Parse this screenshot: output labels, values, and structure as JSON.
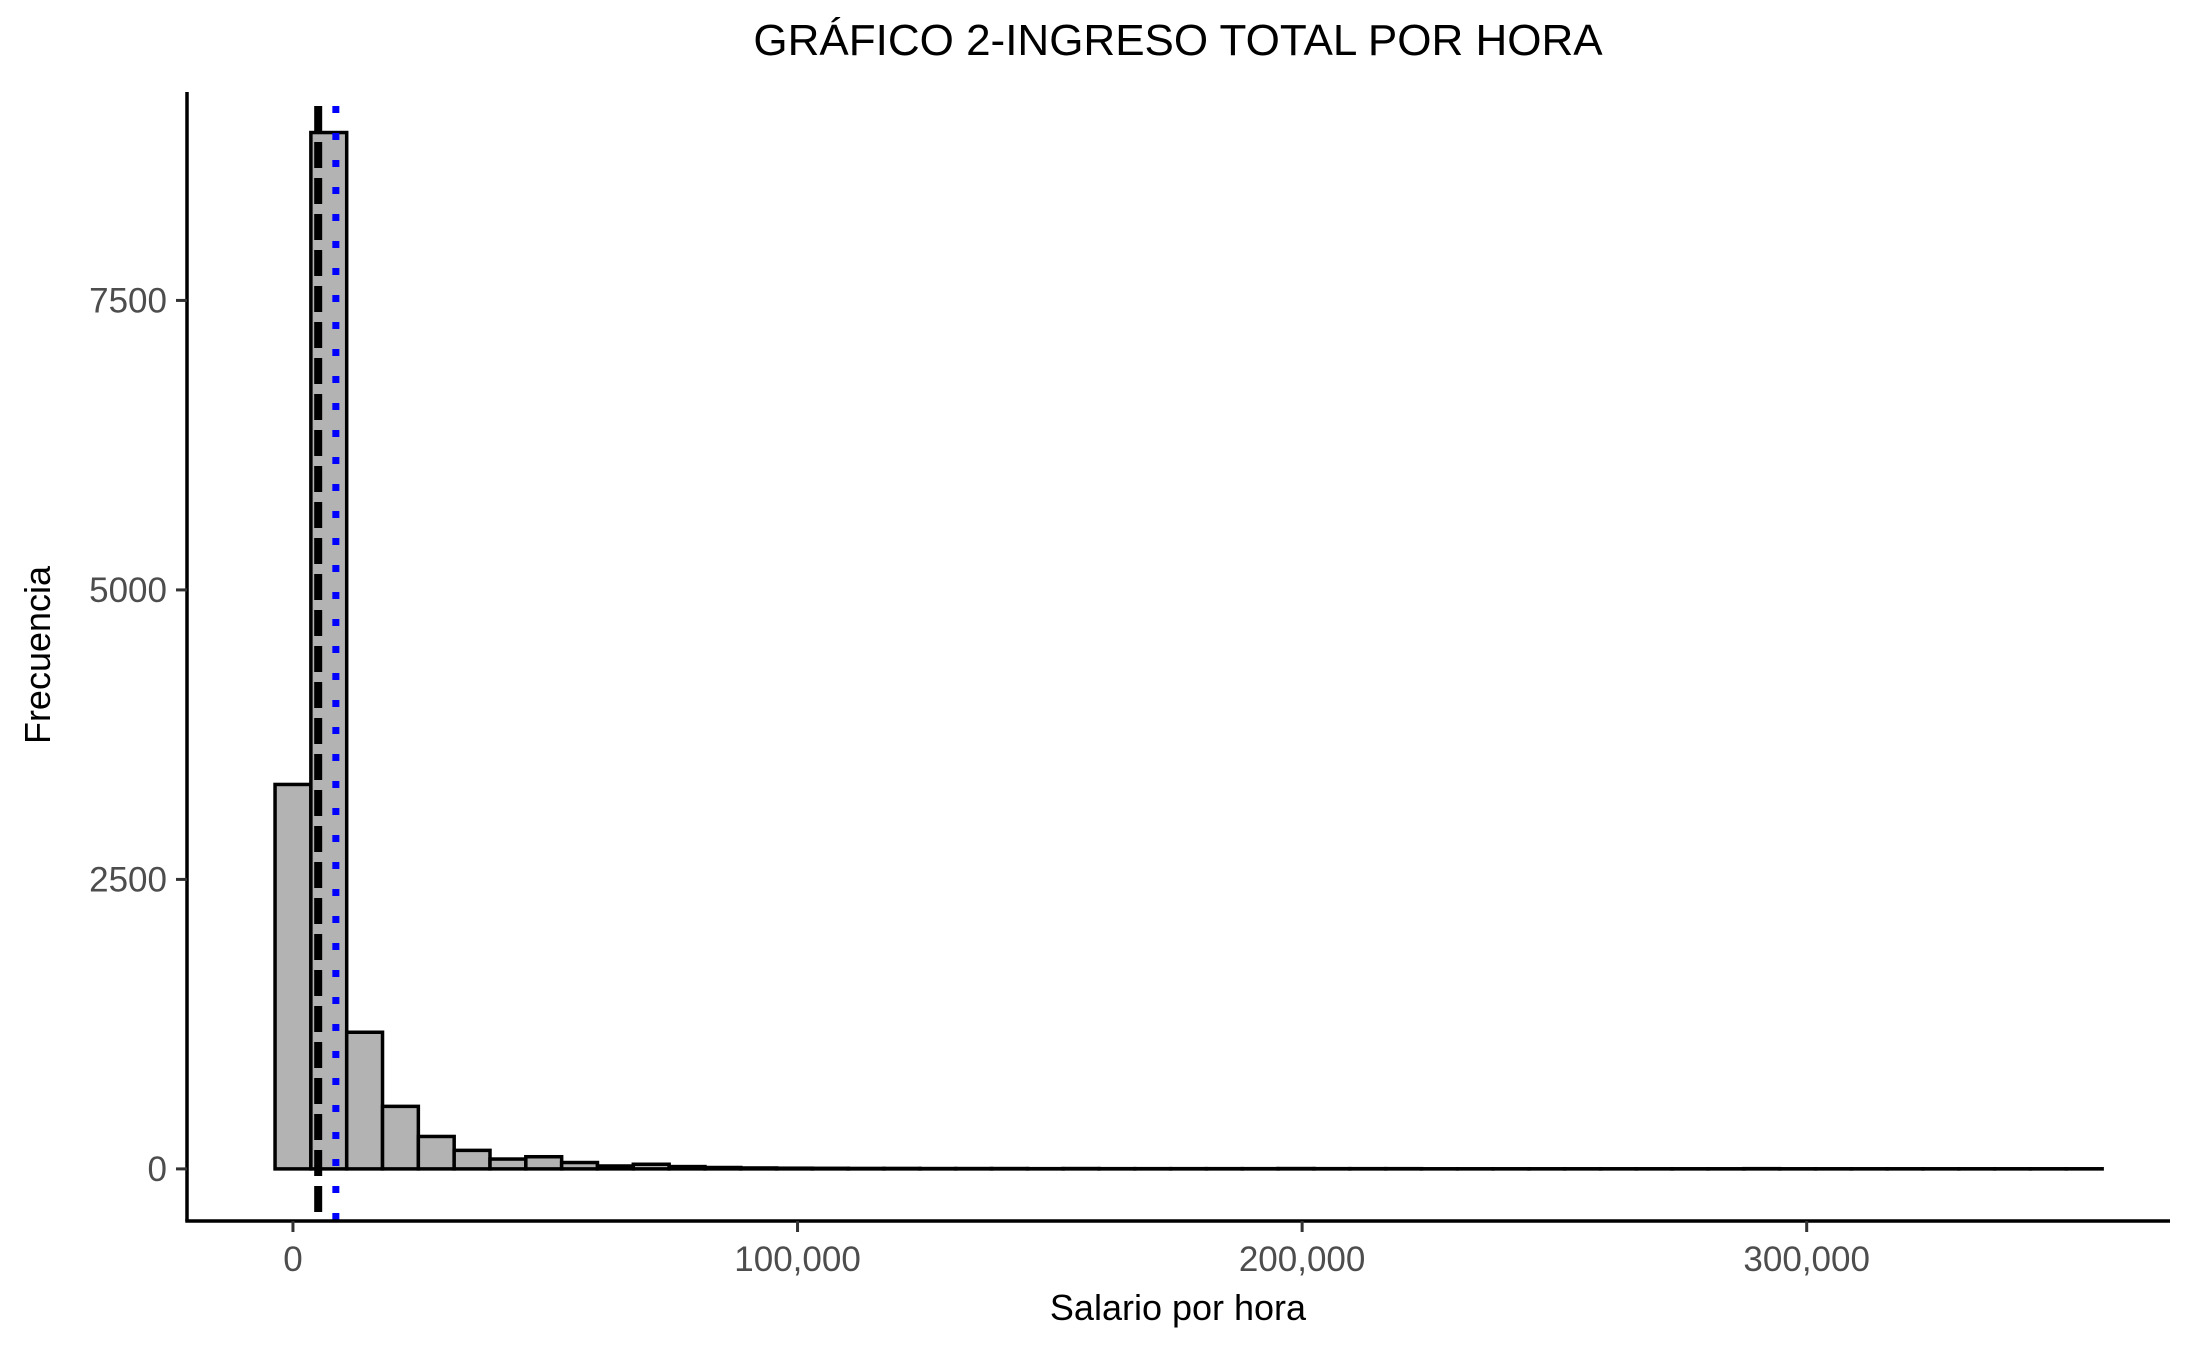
{
  "chart_data": {
    "type": "bar",
    "subtype": "histogram",
    "title": "GRÁFICO 2-INGRESO TOTAL POR HORA",
    "xlabel": "Salario por hora",
    "ylabel": "Frecuencia",
    "xlim": [
      -21000,
      372000
    ],
    "ylim": [
      -450,
      9300
    ],
    "x_ticks": [
      0,
      100000,
      200000,
      300000
    ],
    "x_tick_labels": [
      "0",
      "100,000",
      "200,000",
      "300,000"
    ],
    "y_ticks": [
      0,
      2500,
      5000,
      7500
    ],
    "y_tick_labels": [
      "0",
      "2500",
      "5000",
      "7500"
    ],
    "bin_width": 7100,
    "bin_start": -3550,
    "values": [
      3320,
      8950,
      1180,
      540,
      280,
      160,
      85,
      105,
      55,
      25,
      40,
      20,
      12,
      8,
      6,
      5,
      4,
      4,
      3,
      3,
      3,
      2,
      3,
      2,
      2,
      2,
      2,
      2,
      3,
      2,
      2,
      2,
      1,
      1,
      1,
      1,
      1,
      1,
      1,
      1,
      1,
      2,
      1,
      1,
      1,
      1,
      1,
      1,
      1,
      1,
      1
    ],
    "vlines": [
      {
        "x": 5000,
        "style": "dashed",
        "color": "#000000"
      },
      {
        "x": 8500,
        "style": "dotted",
        "color": "#0000ff"
      }
    ],
    "bar_fill": "#b3b3b3",
    "bar_stroke": "#000000",
    "grid": false,
    "legend": "none"
  }
}
